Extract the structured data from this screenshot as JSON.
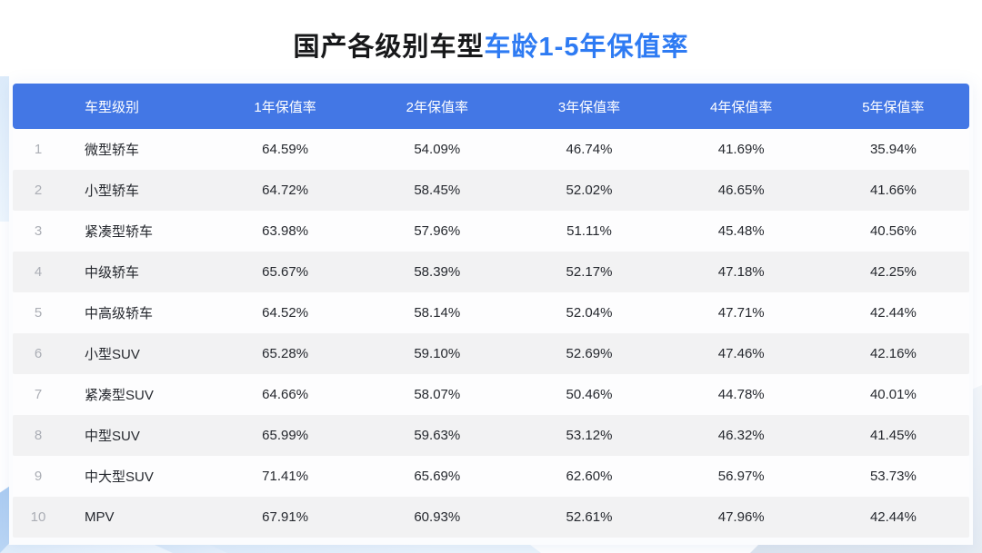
{
  "title": {
    "black_part": "国产各级别车型",
    "blue_part": "车龄1-5年保值率"
  },
  "colors": {
    "header_bg": "#4377e5",
    "title_blue": "#2e7bf3",
    "row_alt_bg": "#f2f2f3",
    "index_gray": "#abaeb5",
    "cell_text": "#25282e",
    "deco_blue": "#a6c9f1"
  },
  "table": {
    "headers": [
      "车型级别",
      "1年保值率",
      "2年保值率",
      "3年保值率",
      "4年保值率",
      "5年保值率"
    ],
    "rows": [
      {
        "index": "1",
        "category": "微型轿车",
        "values": [
          "64.59%",
          "54.09%",
          "46.74%",
          "41.69%",
          "35.94%"
        ]
      },
      {
        "index": "2",
        "category": "小型轿车",
        "values": [
          "64.72%",
          "58.45%",
          "52.02%",
          "46.65%",
          "41.66%"
        ]
      },
      {
        "index": "3",
        "category": "紧凑型轿车",
        "values": [
          "63.98%",
          "57.96%",
          "51.11%",
          "45.48%",
          "40.56%"
        ]
      },
      {
        "index": "4",
        "category": "中级轿车",
        "values": [
          "65.67%",
          "58.39%",
          "52.17%",
          "47.18%",
          "42.25%"
        ]
      },
      {
        "index": "5",
        "category": "中高级轿车",
        "values": [
          "64.52%",
          "58.14%",
          "52.04%",
          "47.71%",
          "42.44%"
        ]
      },
      {
        "index": "6",
        "category": "小型SUV",
        "values": [
          "65.28%",
          "59.10%",
          "52.69%",
          "47.46%",
          "42.16%"
        ]
      },
      {
        "index": "7",
        "category": "紧凑型SUV",
        "values": [
          "64.66%",
          "58.07%",
          "50.46%",
          "44.78%",
          "40.01%"
        ]
      },
      {
        "index": "8",
        "category": "中型SUV",
        "values": [
          "65.99%",
          "59.63%",
          "53.12%",
          "46.32%",
          "41.45%"
        ]
      },
      {
        "index": "9",
        "category": "中大型SUV",
        "values": [
          "71.41%",
          "65.69%",
          "62.60%",
          "56.97%",
          "53.73%"
        ]
      },
      {
        "index": "10",
        "category": "MPV",
        "values": [
          "67.91%",
          "60.93%",
          "52.61%",
          "47.96%",
          "42.44%"
        ]
      }
    ]
  },
  "chart_data": {
    "type": "table",
    "title": "国产各级别车型车龄1-5年保值率",
    "columns": [
      "车型级别",
      "1年保值率",
      "2年保值率",
      "3年保值率",
      "4年保值率",
      "5年保值率"
    ],
    "rows": [
      [
        "微型轿车",
        "64.59%",
        "54.09%",
        "46.74%",
        "41.69%",
        "35.94%"
      ],
      [
        "小型轿车",
        "64.72%",
        "58.45%",
        "52.02%",
        "46.65%",
        "41.66%"
      ],
      [
        "紧凑型轿车",
        "63.98%",
        "57.96%",
        "51.11%",
        "45.48%",
        "40.56%"
      ],
      [
        "中级轿车",
        "65.67%",
        "58.39%",
        "52.17%",
        "47.18%",
        "42.25%"
      ],
      [
        "中高级轿车",
        "64.52%",
        "58.14%",
        "52.04%",
        "47.71%",
        "42.44%"
      ],
      [
        "小型SUV",
        "65.28%",
        "59.10%",
        "52.69%",
        "47.46%",
        "42.16%"
      ],
      [
        "紧凑型SUV",
        "64.66%",
        "58.07%",
        "50.46%",
        "44.78%",
        "40.01%"
      ],
      [
        "中型SUV",
        "65.99%",
        "59.63%",
        "53.12%",
        "46.32%",
        "41.45%"
      ],
      [
        "中大型SUV",
        "71.41%",
        "65.69%",
        "62.60%",
        "56.97%",
        "53.73%"
      ],
      [
        "MPV",
        "67.91%",
        "60.93%",
        "52.61%",
        "47.96%",
        "42.44%"
      ]
    ]
  }
}
